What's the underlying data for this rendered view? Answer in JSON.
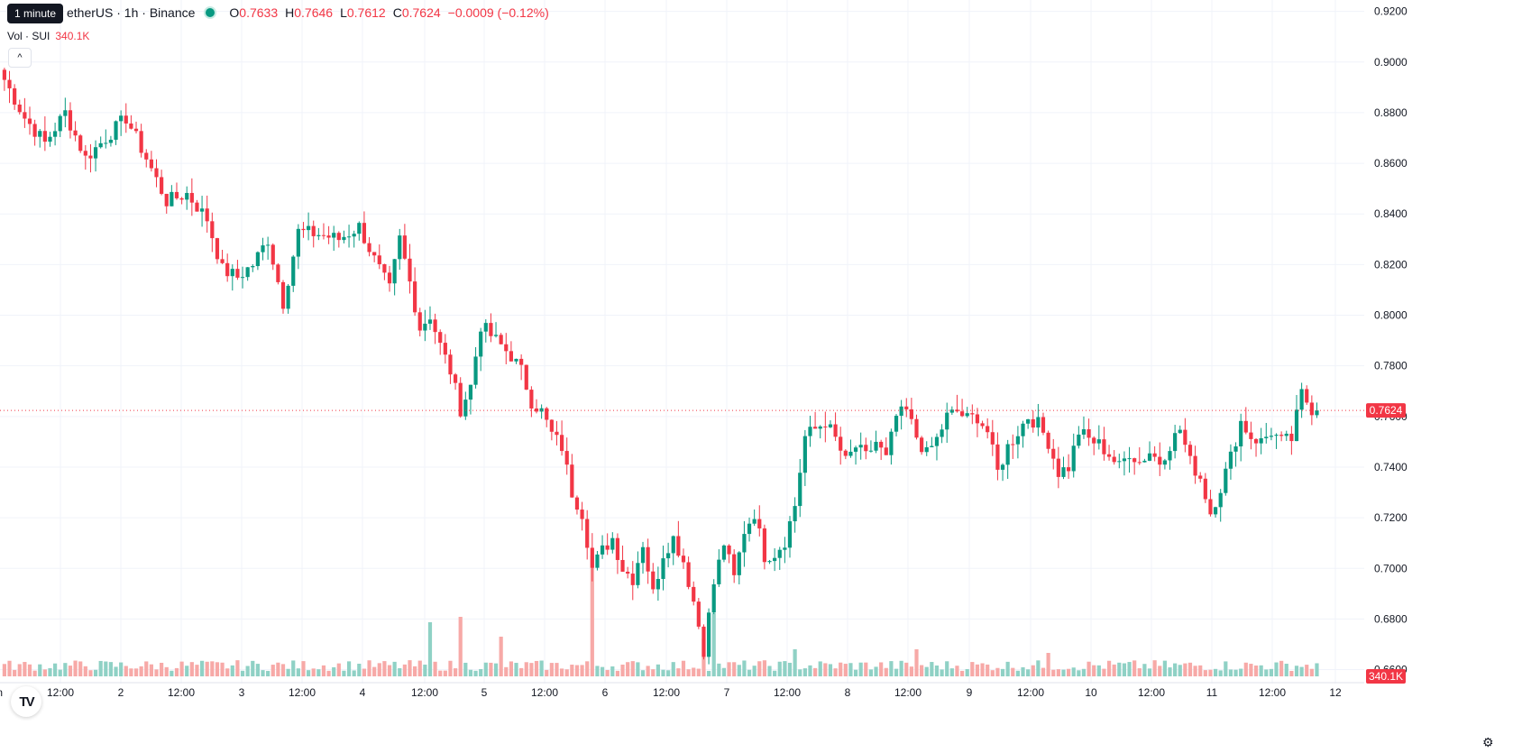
{
  "header": {
    "symbol": "SUI / TetherUS · 1h · Binance",
    "symbol_visible": "etherUS · 1h · Binance",
    "ohlc": [
      {
        "key": "O",
        "value": "0.7633"
      },
      {
        "key": "H",
        "value": "0.7646"
      },
      {
        "key": "L",
        "value": "0.7612"
      },
      {
        "key": "C",
        "value": "0.7624"
      }
    ],
    "change": "−0.0009 (−0.12%)"
  },
  "tooltip": "1 minute",
  "volume_legend": {
    "label": "Vol · SUI",
    "value": "340.1K"
  },
  "collapse_glyph": "^",
  "logo_text": "TV",
  "settings_icon": "gear-icon",
  "colors": {
    "up": "#089981",
    "down": "#f23645",
    "up_vol": "#8fd1c5",
    "down_vol": "#f7a9a7",
    "grid": "#f0f3fa"
  },
  "chart_data": {
    "type": "candlestick",
    "x_tick_labels": [
      "Jun",
      "12:00",
      "2",
      "12:00",
      "3",
      "12:00",
      "4",
      "12:00",
      "5",
      "12:00",
      "6",
      "12:00",
      "7",
      "12:00",
      "8",
      "12:00",
      "9",
      "12:00",
      "10",
      "12:00",
      "11",
      "12:00",
      "12"
    ],
    "y_tick_labels": [
      "0.9200",
      "0.9000",
      "0.8800",
      "0.8600",
      "0.8400",
      "0.8200",
      "0.8000",
      "0.7800",
      "0.7600",
      "0.7400",
      "0.7200",
      "0.7000",
      "0.6800",
      "0.6600"
    ],
    "ylim": [
      0.6545,
      0.9245
    ],
    "last_price": {
      "value": 0.7624,
      "label": "0.7624"
    },
    "last_volume_label": "340.1K",
    "close_path": [
      [
        0,
        0.893
      ],
      [
        4,
        0.878
      ],
      [
        8,
        0.868
      ],
      [
        12,
        0.88
      ],
      [
        16,
        0.862
      ],
      [
        20,
        0.87
      ],
      [
        24,
        0.878
      ],
      [
        28,
        0.862
      ],
      [
        32,
        0.845
      ],
      [
        36,
        0.848
      ],
      [
        40,
        0.838
      ],
      [
        43,
        0.818
      ],
      [
        46,
        0.815
      ],
      [
        49,
        0.82
      ],
      [
        52,
        0.83
      ],
      [
        55,
        0.805
      ],
      [
        58,
        0.833
      ],
      [
        62,
        0.832
      ],
      [
        66,
        0.83
      ],
      [
        70,
        0.835
      ],
      [
        73,
        0.822
      ],
      [
        76,
        0.81
      ],
      [
        78,
        0.83
      ],
      [
        80,
        0.813
      ],
      [
        82,
        0.795
      ],
      [
        84,
        0.8
      ],
      [
        86,
        0.788
      ],
      [
        88,
        0.778
      ],
      [
        90,
        0.763
      ],
      [
        92,
        0.772
      ],
      [
        94,
        0.796
      ],
      [
        97,
        0.79
      ],
      [
        100,
        0.784
      ],
      [
        102,
        0.778
      ],
      [
        104,
        0.766
      ],
      [
        106,
        0.762
      ],
      [
        108,
        0.753
      ],
      [
        110,
        0.748
      ],
      [
        112,
        0.73
      ],
      [
        114,
        0.722
      ],
      [
        116,
        0.7
      ],
      [
        118,
        0.707
      ],
      [
        120,
        0.712
      ],
      [
        122,
        0.7
      ],
      [
        124,
        0.696
      ],
      [
        126,
        0.71
      ],
      [
        128,
        0.69
      ],
      [
        130,
        0.706
      ],
      [
        132,
        0.712
      ],
      [
        134,
        0.703
      ],
      [
        136,
        0.687
      ],
      [
        138,
        0.668
      ],
      [
        140,
        0.694
      ],
      [
        142,
        0.71
      ],
      [
        144,
        0.696
      ],
      [
        146,
        0.715
      ],
      [
        148,
        0.722
      ],
      [
        150,
        0.705
      ],
      [
        152,
        0.706
      ],
      [
        154,
        0.711
      ],
      [
        156,
        0.725
      ],
      [
        158,
        0.752
      ],
      [
        160,
        0.755
      ],
      [
        162,
        0.758
      ],
      [
        164,
        0.751
      ],
      [
        166,
        0.742
      ],
      [
        168,
        0.748
      ],
      [
        170,
        0.744
      ],
      [
        172,
        0.75
      ],
      [
        174,
        0.743
      ],
      [
        176,
        0.76
      ],
      [
        178,
        0.762
      ],
      [
        180,
        0.752
      ],
      [
        182,
        0.745
      ],
      [
        184,
        0.751
      ],
      [
        186,
        0.76
      ],
      [
        188,
        0.762
      ],
      [
        190,
        0.759
      ],
      [
        192,
        0.76
      ],
      [
        194,
        0.754
      ],
      [
        196,
        0.738
      ],
      [
        198,
        0.748
      ],
      [
        200,
        0.754
      ],
      [
        202,
        0.76
      ],
      [
        204,
        0.757
      ],
      [
        206,
        0.75
      ],
      [
        208,
        0.738
      ],
      [
        210,
        0.74
      ],
      [
        212,
        0.754
      ],
      [
        214,
        0.751
      ],
      [
        216,
        0.749
      ],
      [
        218,
        0.745
      ],
      [
        220,
        0.74
      ],
      [
        222,
        0.746
      ],
      [
        224,
        0.742
      ],
      [
        226,
        0.746
      ],
      [
        228,
        0.742
      ],
      [
        230,
        0.749
      ],
      [
        232,
        0.755
      ],
      [
        234,
        0.742
      ],
      [
        236,
        0.736
      ],
      [
        238,
        0.722
      ],
      [
        240,
        0.732
      ],
      [
        242,
        0.744
      ],
      [
        244,
        0.758
      ],
      [
        246,
        0.752
      ],
      [
        248,
        0.75
      ],
      [
        250,
        0.754
      ],
      [
        252,
        0.75
      ],
      [
        254,
        0.751
      ],
      [
        256,
        0.769
      ],
      [
        258,
        0.763
      ],
      [
        259,
        0.762
      ]
    ],
    "volume_peaks": [
      [
        84,
        0.3
      ],
      [
        90,
        0.33
      ],
      [
        98,
        0.22
      ],
      [
        116,
        0.67
      ],
      [
        138,
        0.21
      ],
      [
        140,
        0.35
      ],
      [
        156,
        0.15
      ],
      [
        180,
        0.15
      ],
      [
        206,
        0.13
      ]
    ]
  }
}
